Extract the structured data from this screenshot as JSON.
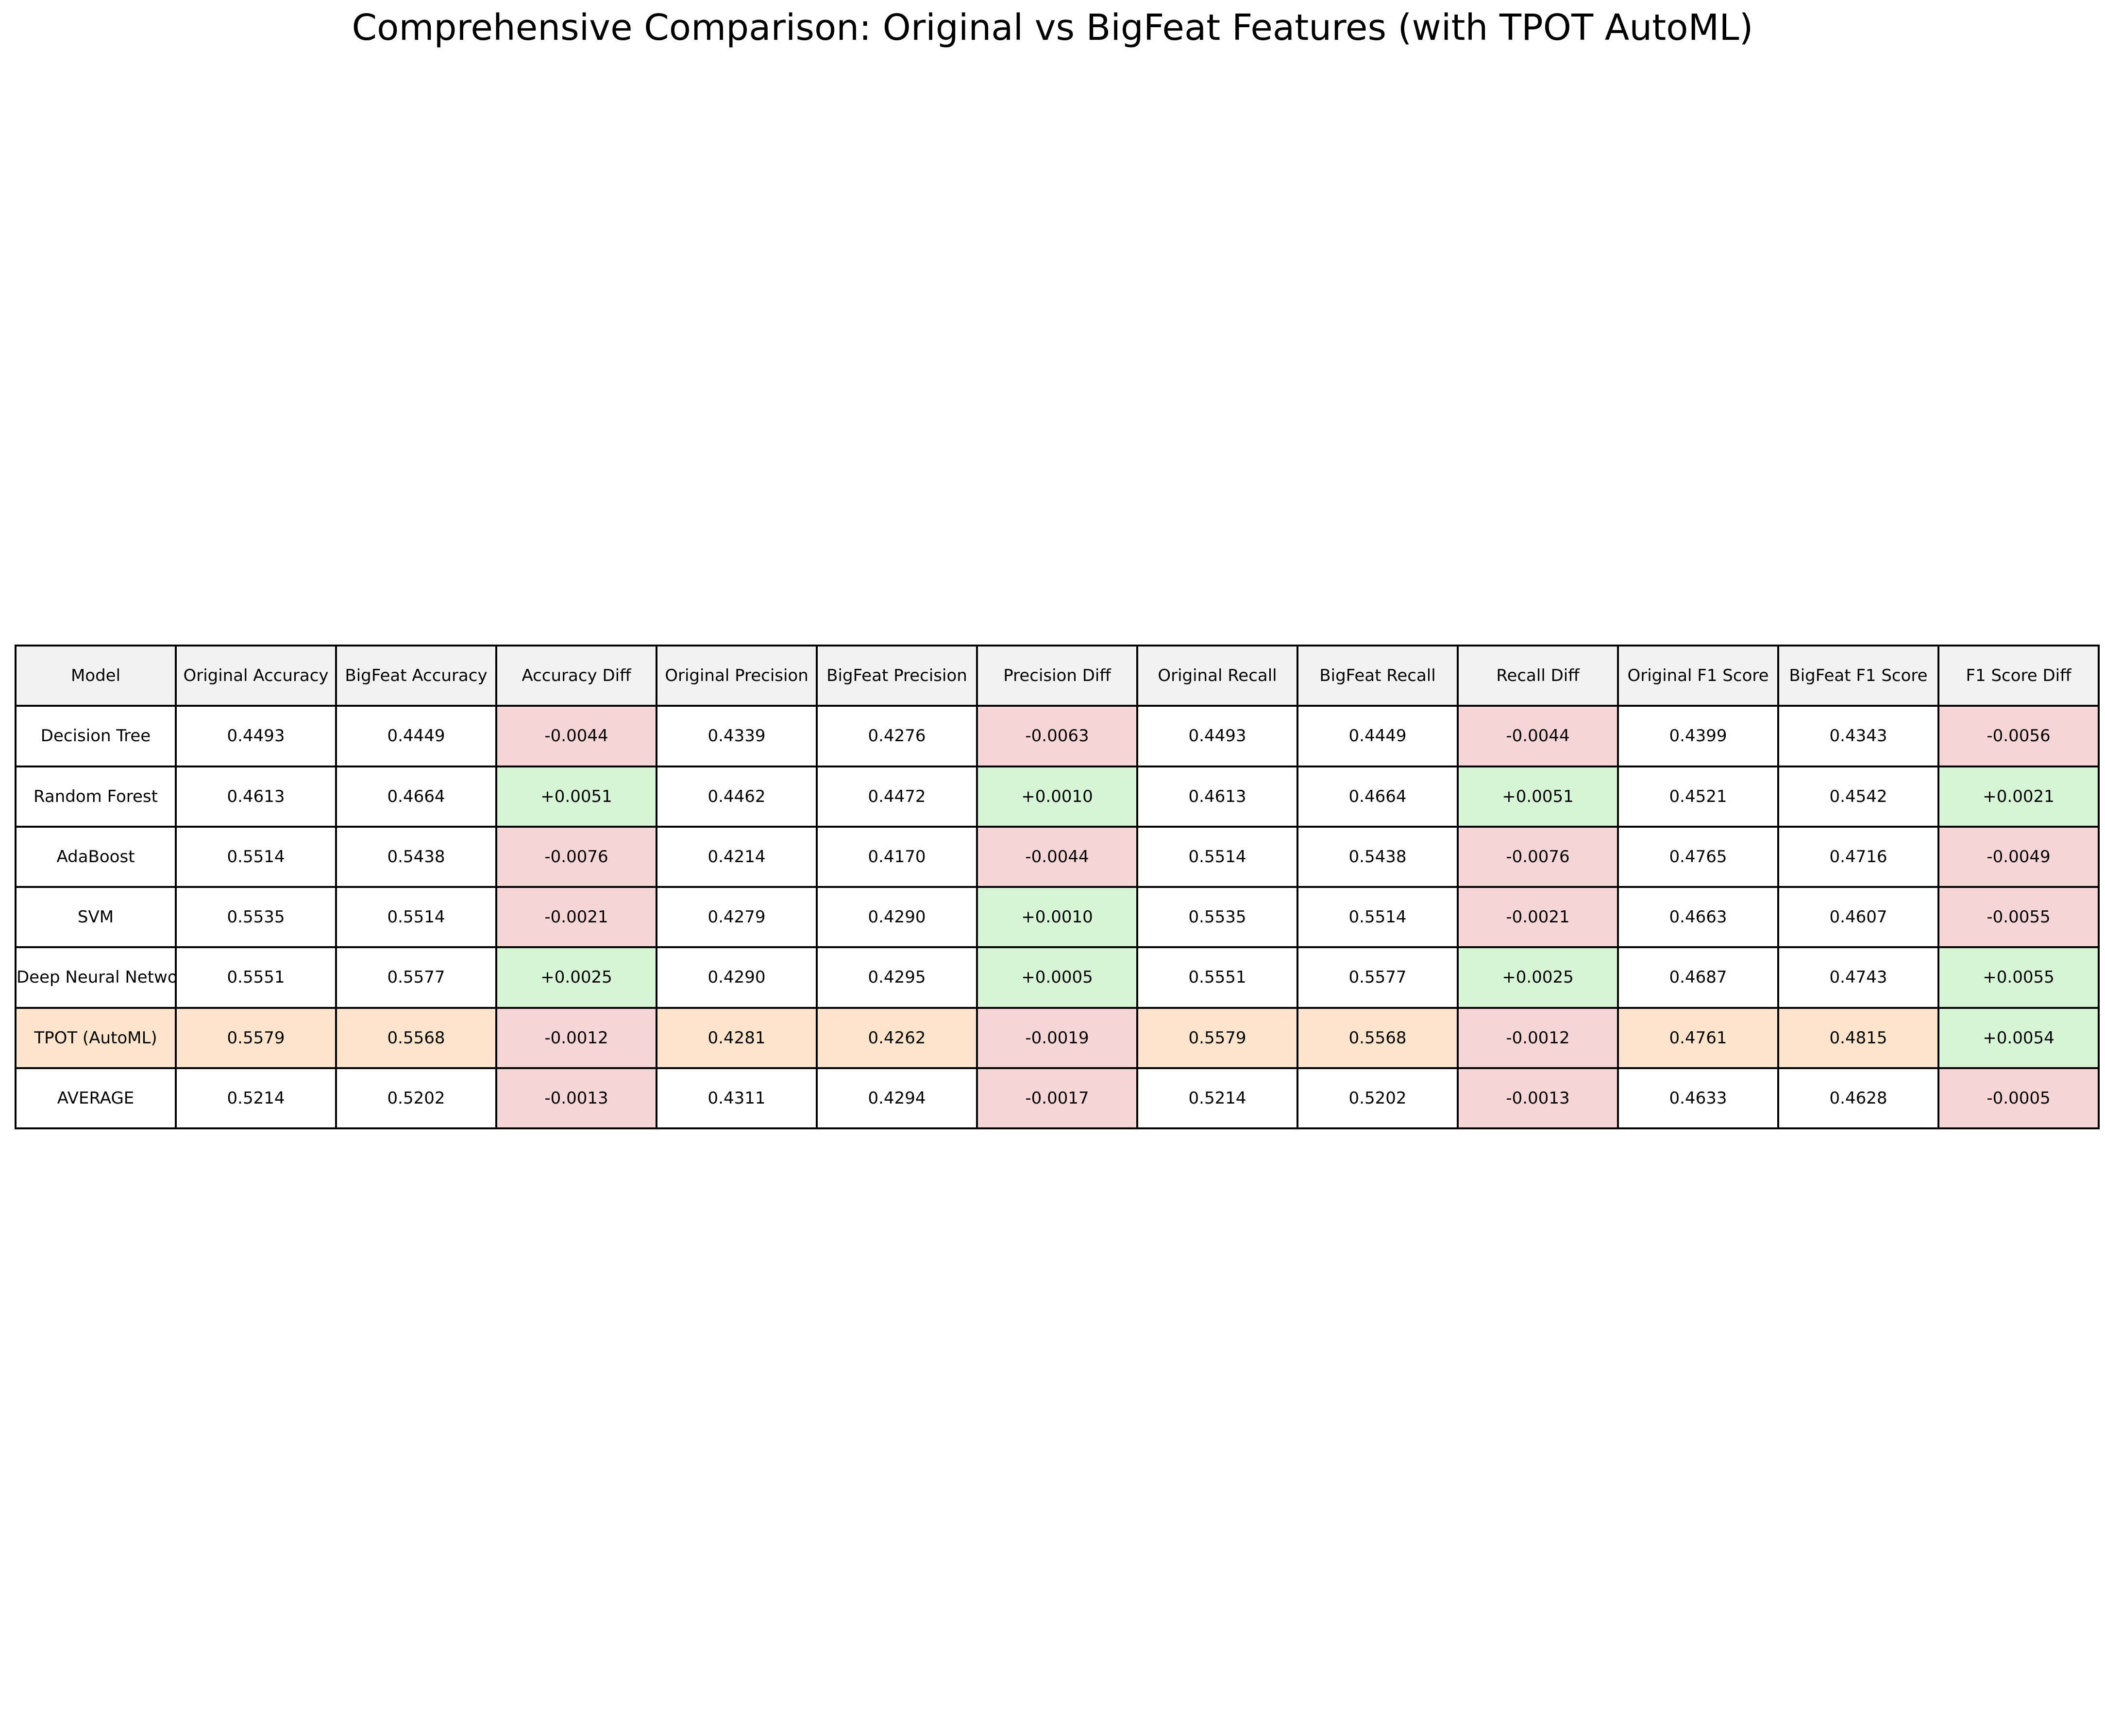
{
  "chart_data": {
    "type": "table",
    "title": "Comprehensive Comparison: Original vs BigFeat Features (with TPOT AutoML)",
    "columns": [
      "Model",
      "Original Accuracy",
      "BigFeat Accuracy",
      "Accuracy Diff",
      "Original Precision",
      "BigFeat Precision",
      "Precision Diff",
      "Original Recall",
      "BigFeat Recall",
      "Recall Diff",
      "Original F1 Score",
      "BigFeat F1 Score",
      "F1 Score Diff"
    ],
    "rows": [
      [
        "Decision Tree",
        "0.4493",
        "0.4449",
        "-0.0044",
        "0.4339",
        "0.4276",
        "-0.0063",
        "0.4493",
        "0.4449",
        "-0.0044",
        "0.4399",
        "0.4343",
        "-0.0056"
      ],
      [
        "Random Forest",
        "0.4613",
        "0.4664",
        "+0.0051",
        "0.4462",
        "0.4472",
        "+0.0010",
        "0.4613",
        "0.4664",
        "+0.0051",
        "0.4521",
        "0.4542",
        "+0.0021"
      ],
      [
        "AdaBoost",
        "0.5514",
        "0.5438",
        "-0.0076",
        "0.4214",
        "0.4170",
        "-0.0044",
        "0.5514",
        "0.5438",
        "-0.0076",
        "0.4765",
        "0.4716",
        "-0.0049"
      ],
      [
        "SVM",
        "0.5535",
        "0.5514",
        "-0.0021",
        "0.4279",
        "0.4290",
        "+0.0010",
        "0.5535",
        "0.5514",
        "-0.0021",
        "0.4663",
        "0.4607",
        "-0.0055"
      ],
      [
        "Deep Neural Networ",
        "0.5551",
        "0.5577",
        "+0.0025",
        "0.4290",
        "0.4295",
        "+0.0005",
        "0.5551",
        "0.5577",
        "+0.0025",
        "0.4687",
        "0.4743",
        "+0.0055"
      ],
      [
        "TPOT (AutoML)",
        "0.5579",
        "0.5568",
        "-0.0012",
        "0.4281",
        "0.4262",
        "-0.0019",
        "0.5579",
        "0.5568",
        "-0.0012",
        "0.4761",
        "0.4815",
        "+0.0054"
      ],
      [
        "AVERAGE",
        "0.5214",
        "0.5202",
        "-0.0013",
        "0.4311",
        "0.4294",
        "-0.0017",
        "0.5214",
        "0.5202",
        "-0.0013",
        "0.4633",
        "0.4628",
        "-0.0005"
      ]
    ],
    "highlighted_row": "TPOT (AutoML)"
  },
  "colors": {
    "header_bg": "#f2f2f2",
    "positive_diff_bg": "#d5f5d5",
    "negative_diff_bg": "#f5d5d5",
    "highlight_row_bg": "#fde5cb",
    "default_bg": "#ffffff",
    "border": "#000000",
    "text": "#000000"
  }
}
